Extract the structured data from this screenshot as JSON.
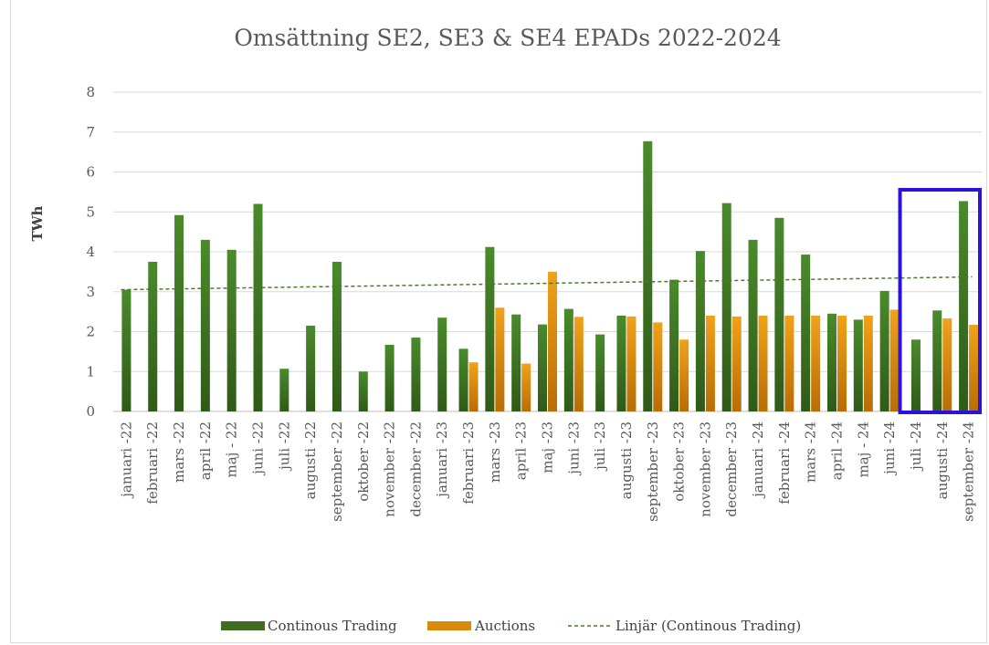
{
  "chart_data": {
    "type": "bar",
    "title": "Omsättning SE2, SE3 & SE4 EPADs  2022-2024",
    "xlabel": "",
    "ylabel": "TWh",
    "ylim": [
      0,
      8
    ],
    "yticks": [
      "0",
      "1",
      "2",
      "3",
      "4",
      "5",
      "6",
      "7",
      "8"
    ],
    "grid": true,
    "legend_position": "bottom",
    "categories": [
      "januari -22",
      "februari -22",
      "mars -22",
      "april -22",
      "maj - 22",
      "juni -22",
      "juli -22",
      "augusti -22",
      "september -22",
      "oktober -22",
      "november -22",
      "december -22",
      "januari -23",
      "februari -23",
      "mars -23",
      "april -23",
      "maj -23",
      "juni -23",
      "juli -23",
      "augusti -23",
      "september -23",
      "oktober -23",
      "november -23",
      "december -23",
      "januari -24",
      "februari -24",
      "mars -24",
      "april -24",
      "maj - 24",
      "juni -24",
      "juli -24",
      "augusti -24",
      "september -24"
    ],
    "series": [
      {
        "name": "Continous Trading",
        "color": "#3f6e22",
        "values": [
          3.05,
          3.75,
          4.92,
          4.3,
          4.05,
          5.2,
          1.07,
          2.15,
          3.75,
          1.0,
          1.67,
          1.85,
          2.35,
          1.57,
          4.12,
          2.43,
          2.18,
          2.57,
          1.93,
          2.4,
          6.77,
          3.3,
          4.02,
          5.22,
          4.3,
          4.85,
          3.93,
          2.45,
          2.3,
          3.02,
          1.8,
          2.53,
          5.27
        ]
      },
      {
        "name": "Auctions",
        "color": "#d98a0a",
        "values": [
          null,
          null,
          null,
          null,
          null,
          null,
          null,
          null,
          null,
          null,
          null,
          null,
          null,
          1.23,
          2.6,
          1.2,
          3.5,
          2.37,
          null,
          2.38,
          2.23,
          1.8,
          2.4,
          2.38,
          2.4,
          2.4,
          2.4,
          2.4,
          2.4,
          2.55,
          null,
          2.33,
          2.17
        ]
      },
      {
        "name": "Linjär (Continous Trading)",
        "type": "linear-trendline",
        "color": "#4b7a2a",
        "start": 3.05,
        "end": 3.37
      }
    ],
    "highlight": {
      "color": "#2a12d9",
      "from_category": "juli -24",
      "to_category": "september -24"
    }
  }
}
